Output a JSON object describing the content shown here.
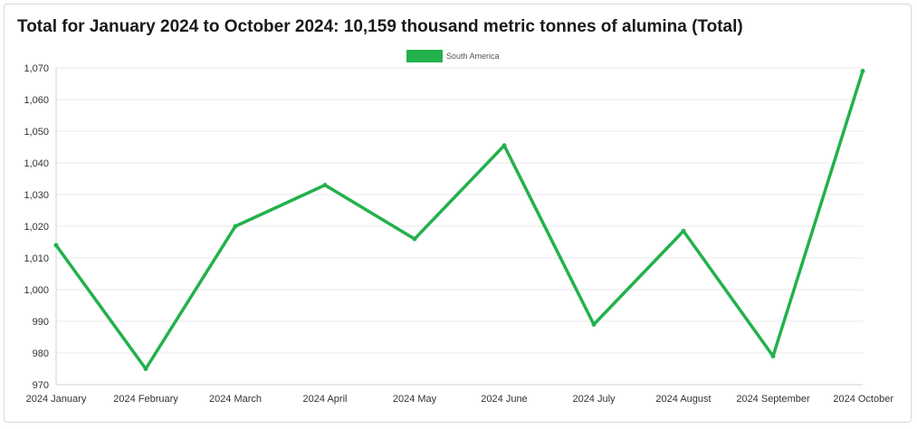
{
  "title": "Total for January 2024 to October 2024: 10,159 thousand metric tonnes of alumina (Total)",
  "colors": {
    "series": "#22b14c",
    "grid": "#e8e8e8",
    "axis": "#d0d0d0"
  },
  "chart_data": {
    "type": "line",
    "categories": [
      "2024 January",
      "2024 February",
      "2024 March",
      "2024 April",
      "2024 May",
      "2024 June",
      "2024 July",
      "2024 August",
      "2024 September",
      "2024 October"
    ],
    "series": [
      {
        "name": "South America",
        "values": [
          1014,
          975,
          1020,
          1033,
          1016,
          1045.5,
          989,
          1018.5,
          979,
          1069
        ]
      }
    ],
    "ylim": [
      970,
      1070
    ],
    "yticks": [
      "970",
      "980",
      "990",
      "1,000",
      "1,010",
      "1,020",
      "1,030",
      "1,040",
      "1,050",
      "1,060",
      "1,070"
    ],
    "grid": true,
    "legend": "top-center"
  }
}
